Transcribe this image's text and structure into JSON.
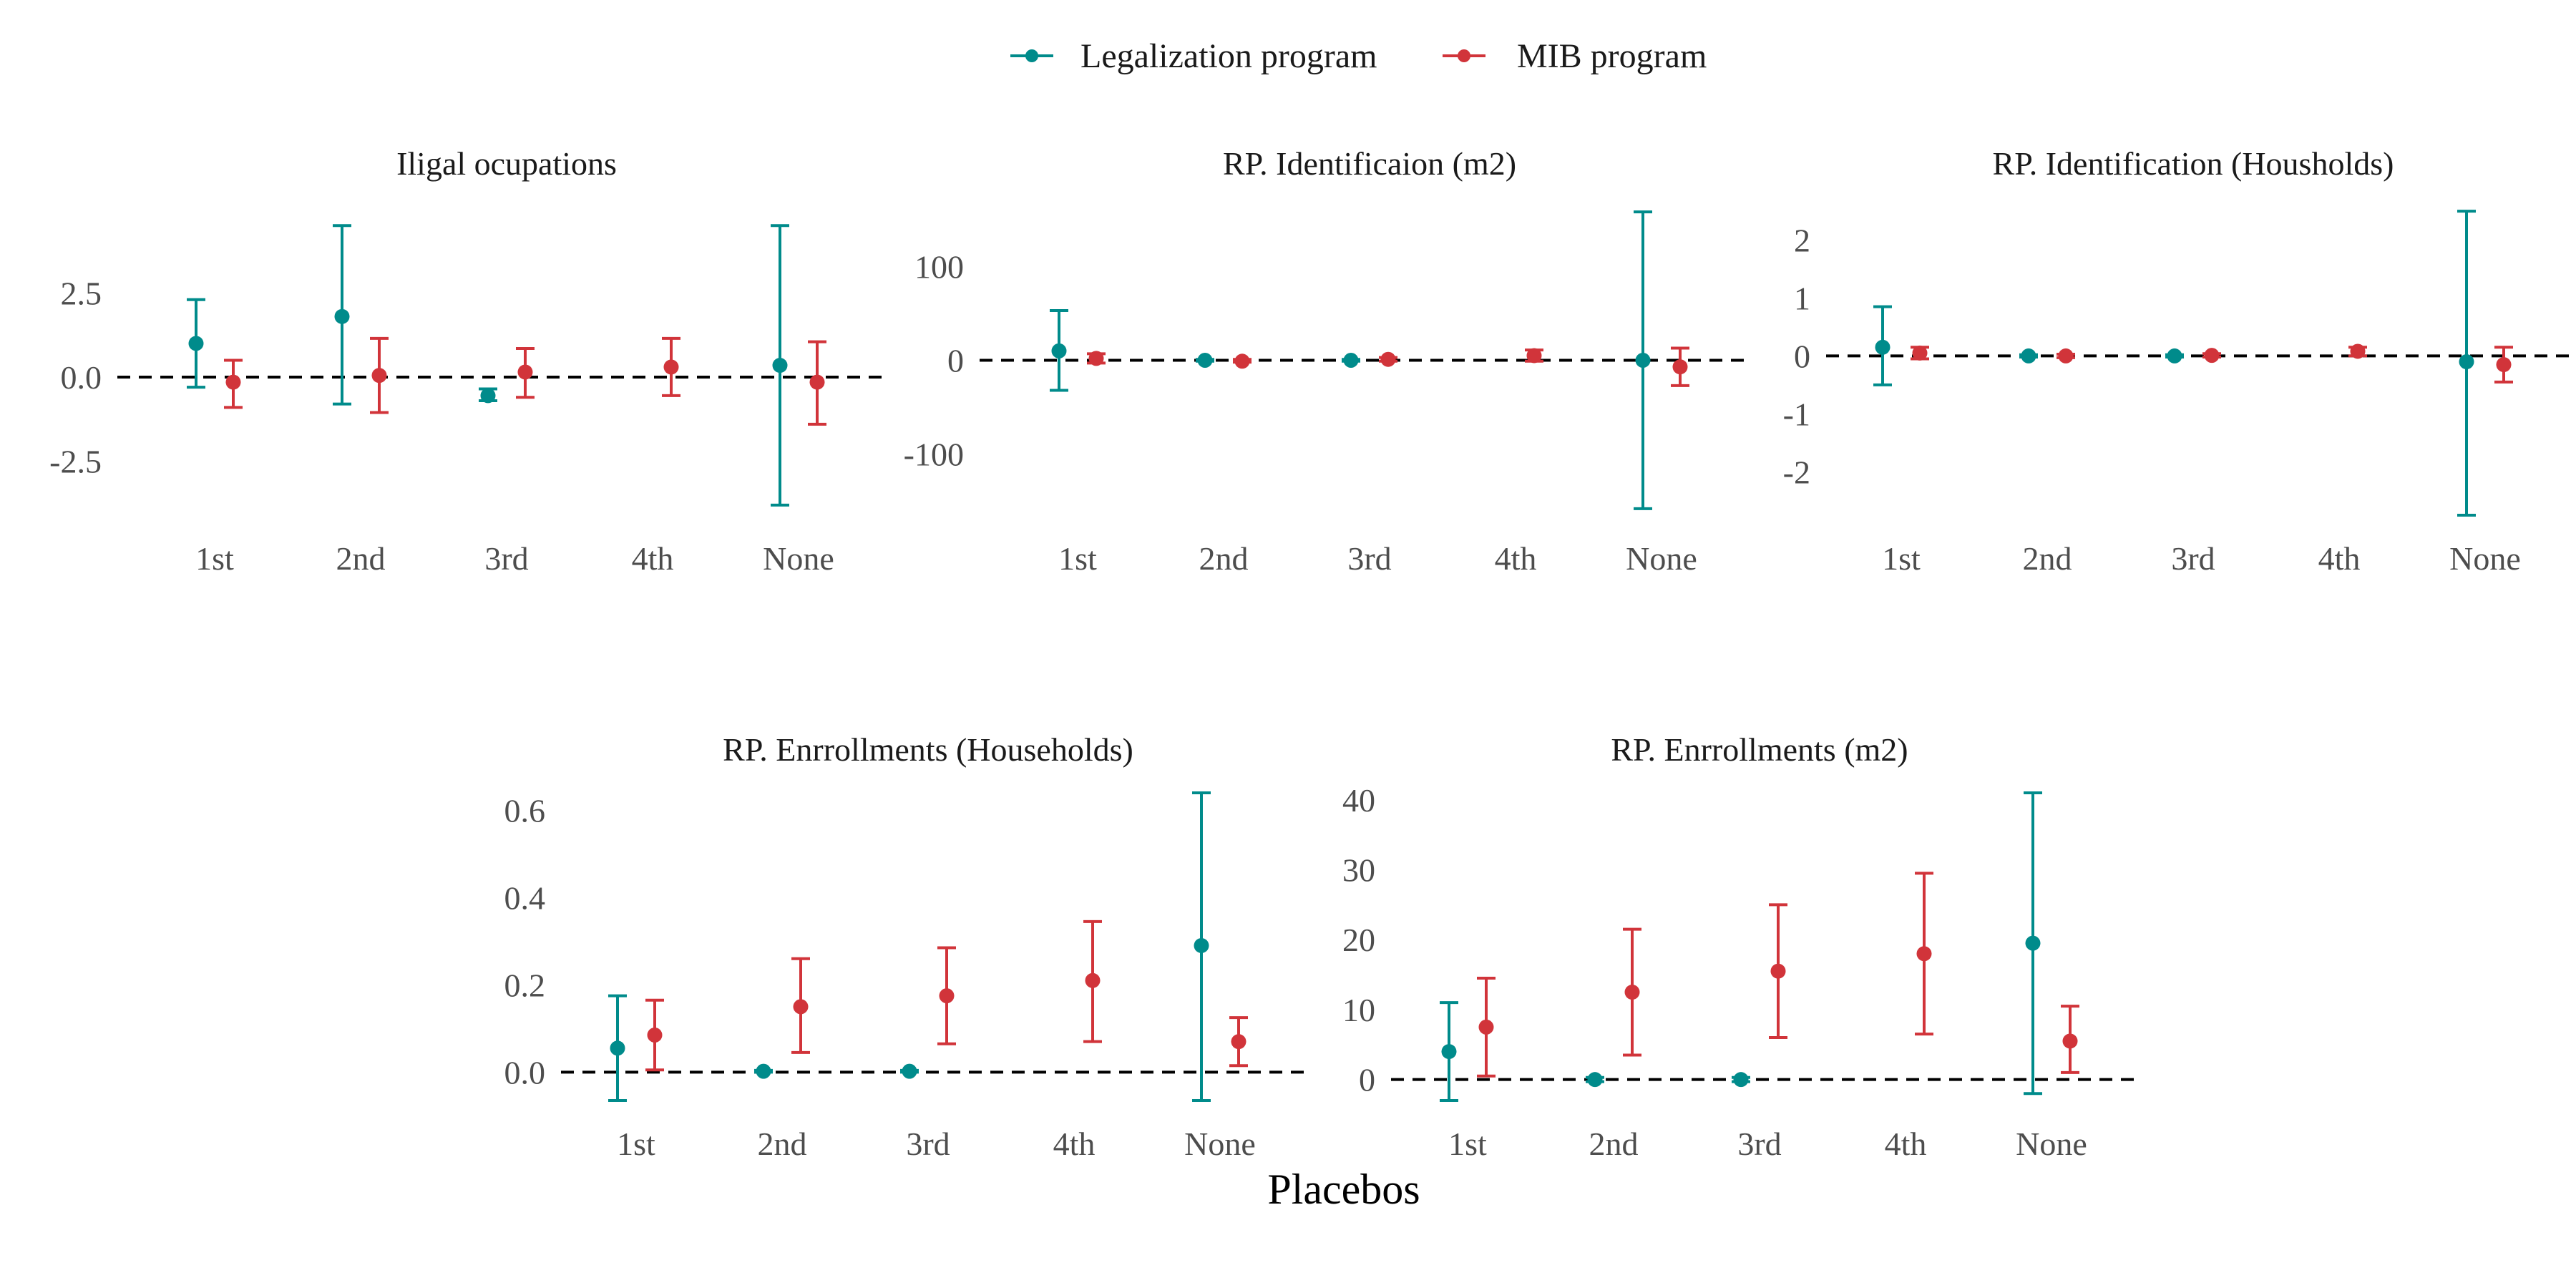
{
  "legend": [
    {
      "label": "Legalization program",
      "color": "#008B8B"
    },
    {
      "label": "MIB program",
      "color": "#D1343A"
    }
  ],
  "x_title": "Placebos",
  "chart_data": [
    {
      "type": "scatter",
      "subtype": "point-with-error-bars",
      "title": "Iligal ocupations",
      "categories": [
        "1st",
        "2nd",
        "3rd",
        "4th",
        "None"
      ],
      "ylim": [
        -4.1,
        5.1
      ],
      "yticks": [
        2.5,
        0.0,
        -2.5
      ],
      "ytick_labels": [
        "2.5",
        "0.0",
        "-2.5"
      ],
      "reference_line": 0,
      "series": [
        {
          "name": "Legalization program",
          "points": [
            {
              "category": "1st",
              "estimate": 1.0,
              "lower": -0.3,
              "upper": 2.3
            },
            {
              "category": "2nd",
              "estimate": 1.8,
              "lower": -0.8,
              "upper": 4.5
            },
            {
              "category": "3rd",
              "estimate": -0.55,
              "lower": -0.7,
              "upper": -0.35
            },
            {
              "category": "None",
              "estimate": 0.35,
              "lower": -3.8,
              "upper": 4.5
            }
          ]
        },
        {
          "name": "MIB program",
          "points": [
            {
              "category": "1st",
              "estimate": -0.15,
              "lower": -0.9,
              "upper": 0.5
            },
            {
              "category": "2nd",
              "estimate": 0.05,
              "lower": -1.05,
              "upper": 1.15
            },
            {
              "category": "3rd",
              "estimate": 0.15,
              "lower": -0.6,
              "upper": 0.85
            },
            {
              "category": "4th",
              "estimate": 0.3,
              "lower": -0.55,
              "upper": 1.15
            },
            {
              "category": "None",
              "estimate": -0.15,
              "lower": -1.4,
              "upper": 1.05
            }
          ]
        }
      ]
    },
    {
      "type": "scatter",
      "subtype": "point-with-error-bars",
      "title": "RP. Identificaion (m2)",
      "categories": [
        "1st",
        "2nd",
        "3rd",
        "4th",
        "None"
      ],
      "ylim": [
        -165,
        165
      ],
      "yticks": [
        100,
        0,
        -100
      ],
      "ytick_labels": [
        "100",
        "0",
        "-100"
      ],
      "reference_line": 0,
      "series": [
        {
          "name": "Legalization program",
          "points": [
            {
              "category": "1st",
              "estimate": 10,
              "lower": -32,
              "upper": 53
            },
            {
              "category": "2nd",
              "estimate": 0,
              "lower": -1,
              "upper": 1
            },
            {
              "category": "3rd",
              "estimate": 0,
              "lower": -1,
              "upper": 1
            },
            {
              "category": "None",
              "estimate": 0,
              "lower": -158,
              "upper": 158
            }
          ]
        },
        {
          "name": "MIB program",
          "points": [
            {
              "category": "1st",
              "estimate": 2,
              "lower": -3,
              "upper": 7
            },
            {
              "category": "2nd",
              "estimate": -1,
              "lower": -2,
              "upper": 1
            },
            {
              "category": "3rd",
              "estimate": 1,
              "lower": -1,
              "upper": 3
            },
            {
              "category": "4th",
              "estimate": 5,
              "lower": -1,
              "upper": 11
            },
            {
              "category": "None",
              "estimate": -7,
              "lower": -27,
              "upper": 13
            }
          ]
        }
      ]
    },
    {
      "type": "scatter",
      "subtype": "point-with-error-bars",
      "title": "RP. Identification (Housholds)",
      "categories": [
        "1st",
        "2nd",
        "3rd",
        "4th",
        "None"
      ],
      "ylim": [
        -2.75,
        2.6
      ],
      "yticks": [
        2,
        1,
        0,
        -1,
        -2
      ],
      "ytick_labels": [
        "2",
        "1",
        "0",
        "-1",
        "-2"
      ],
      "reference_line": 0,
      "series": [
        {
          "name": "Legalization program",
          "points": [
            {
              "category": "1st",
              "estimate": 0.15,
              "lower": -0.5,
              "upper": 0.85
            },
            {
              "category": "2nd",
              "estimate": 0.0,
              "lower": -0.02,
              "upper": 0.02
            },
            {
              "category": "3rd",
              "estimate": 0.0,
              "lower": -0.02,
              "upper": 0.02
            },
            {
              "category": "None",
              "estimate": -0.1,
              "lower": -2.75,
              "upper": 2.5
            }
          ]
        },
        {
          "name": "MIB program",
          "points": [
            {
              "category": "1st",
              "estimate": 0.05,
              "lower": -0.05,
              "upper": 0.15
            },
            {
              "category": "2nd",
              "estimate": 0.0,
              "lower": -0.03,
              "upper": 0.03
            },
            {
              "category": "3rd",
              "estimate": 0.01,
              "lower": -0.02,
              "upper": 0.04
            },
            {
              "category": "4th",
              "estimate": 0.08,
              "lower": 0.0,
              "upper": 0.15
            },
            {
              "category": "None",
              "estimate": -0.15,
              "lower": -0.45,
              "upper": 0.15
            }
          ]
        }
      ]
    },
    {
      "type": "scatter",
      "subtype": "point-with-error-bars",
      "title": "RP. Enrrollments (Households)",
      "categories": [
        "1st",
        "2nd",
        "3rd",
        "4th",
        "None"
      ],
      "ylim": [
        -0.065,
        0.64
      ],
      "yticks": [
        0.6,
        0.4,
        0.2,
        0.0
      ],
      "ytick_labels": [
        "0.6",
        "0.4",
        "0.2",
        "0.0"
      ],
      "reference_line": 0,
      "series": [
        {
          "name": "Legalization program",
          "points": [
            {
              "category": "1st",
              "estimate": 0.055,
              "lower": -0.065,
              "upper": 0.175
            },
            {
              "category": "2nd",
              "estimate": 0.002,
              "lower": 0.0,
              "upper": 0.004
            },
            {
              "category": "3rd",
              "estimate": 0.002,
              "lower": 0.0,
              "upper": 0.004
            },
            {
              "category": "None",
              "estimate": 0.29,
              "lower": -0.065,
              "upper": 0.64
            }
          ]
        },
        {
          "name": "MIB program",
          "points": [
            {
              "category": "1st",
              "estimate": 0.085,
              "lower": 0.005,
              "upper": 0.165
            },
            {
              "category": "2nd",
              "estimate": 0.15,
              "lower": 0.045,
              "upper": 0.26
            },
            {
              "category": "3rd",
              "estimate": 0.175,
              "lower": 0.065,
              "upper": 0.285
            },
            {
              "category": "4th",
              "estimate": 0.21,
              "lower": 0.07,
              "upper": 0.345
            },
            {
              "category": "None",
              "estimate": 0.07,
              "lower": 0.015,
              "upper": 0.125
            }
          ]
        }
      ]
    },
    {
      "type": "scatter",
      "subtype": "point-with-error-bars",
      "title": "RP. Enrrollments (m2)",
      "categories": [
        "1st",
        "2nd",
        "3rd",
        "4th",
        "None"
      ],
      "ylim": [
        -3,
        41
      ],
      "yticks": [
        40,
        30,
        20,
        10,
        0
      ],
      "ytick_labels": [
        "40",
        "30",
        "20",
        "10",
        "0"
      ],
      "reference_line": 0,
      "series": [
        {
          "name": "Legalization program",
          "points": [
            {
              "category": "1st",
              "estimate": 4,
              "lower": -3,
              "upper": 11
            },
            {
              "category": "2nd",
              "estimate": 0,
              "lower": -0.3,
              "upper": 0.3
            },
            {
              "category": "3rd",
              "estimate": 0,
              "lower": -0.3,
              "upper": 0.3
            },
            {
              "category": "None",
              "estimate": 19.5,
              "lower": -2,
              "upper": 41
            }
          ]
        },
        {
          "name": "MIB program",
          "points": [
            {
              "category": "1st",
              "estimate": 7.5,
              "lower": 0.5,
              "upper": 14.5
            },
            {
              "category": "2nd",
              "estimate": 12.5,
              "lower": 3.5,
              "upper": 21.5
            },
            {
              "category": "3rd",
              "estimate": 15.5,
              "lower": 6.0,
              "upper": 25.0
            },
            {
              "category": "4th",
              "estimate": 18,
              "lower": 6.5,
              "upper": 29.5
            },
            {
              "category": "None",
              "estimate": 5.5,
              "lower": 1.0,
              "upper": 10.5
            }
          ]
        }
      ]
    }
  ]
}
